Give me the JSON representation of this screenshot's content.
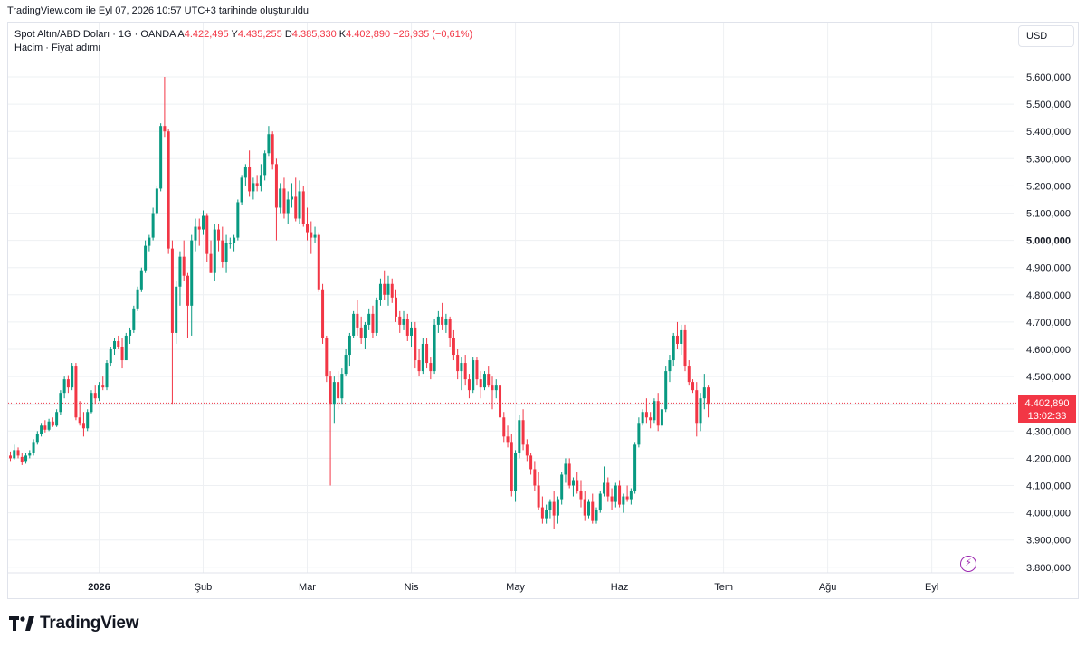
{
  "header": {
    "snapshot_text": "TradingView.com ile Eyl 07, 2026 10:57 UTC+3 tarihinde oluşturuldu"
  },
  "legend": {
    "symbol": "Spot Altın/ABD Doları · 1G · OANDA",
    "open_label": "A",
    "open": "4.422,495",
    "high_label": "Y",
    "high": "4.435,255",
    "low_label": "D",
    "low": "4.385,330",
    "close_label": "K",
    "close": "4.402,890",
    "change": "−26,935 (−0,61%)",
    "indicators": "Hacim · Fiyat adımı"
  },
  "currency_button": "USD",
  "last_price": {
    "price": "4.402,890",
    "countdown": "13:02:33"
  },
  "brand": {
    "logo_text": "TradingView"
  },
  "colors": {
    "up": "#089981",
    "down": "#f23645",
    "grid": "#eef0f3",
    "accent": "#9c27b0"
  },
  "icons": {
    "flash": "lightning-icon",
    "logo": "tradingview-logo-icon"
  },
  "chart_data": {
    "type": "candlestick",
    "y_ticks": [
      "5.600,000",
      "5.500,000",
      "5.400,000",
      "5.300,000",
      "5.200,000",
      "5.100,000",
      "5.000,000",
      "4.900,000",
      "4.800,000",
      "4.700,000",
      "4.600,000",
      "4.500,000",
      "4.300,000",
      "4.200,000",
      "4.100,000",
      "4.000,000",
      "3.900,000",
      "3.800,000"
    ],
    "y_tick_values": [
      5600,
      5500,
      5400,
      5300,
      5200,
      5100,
      5000,
      4900,
      4800,
      4700,
      4600,
      4500,
      4300,
      4200,
      4100,
      4000,
      3900,
      3800
    ],
    "ylim": [
      3780,
      5660
    ],
    "x_ticks": [
      "2026",
      "Şub",
      "Mar",
      "Nis",
      "May",
      "Haz",
      "Tem",
      "Ağu",
      "Eyl"
    ],
    "x_tick_index": [
      23,
      50,
      77,
      104,
      131,
      158,
      185,
      212,
      239
    ],
    "last_value": 4402.89,
    "grid": true,
    "ohlc": [
      [
        4210,
        4225,
        4190,
        4200
      ],
      [
        4200,
        4250,
        4195,
        4230
      ],
      [
        4230,
        4240,
        4200,
        4210
      ],
      [
        4205,
        4220,
        4175,
        4185
      ],
      [
        4190,
        4220,
        4180,
        4210
      ],
      [
        4210,
        4230,
        4200,
        4220
      ],
      [
        4220,
        4270,
        4210,
        4260
      ],
      [
        4260,
        4300,
        4250,
        4290
      ],
      [
        4290,
        4330,
        4280,
        4320
      ],
      [
        4320,
        4340,
        4295,
        4305
      ],
      [
        4305,
        4345,
        4300,
        4335
      ],
      [
        4335,
        4350,
        4315,
        4320
      ],
      [
        4320,
        4380,
        4315,
        4370
      ],
      [
        4370,
        4450,
        4360,
        4440
      ],
      [
        4440,
        4500,
        4420,
        4490
      ],
      [
        4490,
        4505,
        4440,
        4460
      ],
      [
        4460,
        4550,
        4450,
        4540
      ],
      [
        4540,
        4550,
        4340,
        4350
      ],
      [
        4350,
        4410,
        4320,
        4330
      ],
      [
        4330,
        4370,
        4280,
        4310
      ],
      [
        4310,
        4380,
        4300,
        4370
      ],
      [
        4370,
        4450,
        4365,
        4440
      ],
      [
        4440,
        4470,
        4400,
        4420
      ],
      [
        4420,
        4480,
        4410,
        4470
      ],
      [
        4470,
        4500,
        4450,
        4460
      ],
      [
        4460,
        4560,
        4450,
        4550
      ],
      [
        4550,
        4610,
        4540,
        4600
      ],
      [
        4600,
        4640,
        4580,
        4630
      ],
      [
        4630,
        4650,
        4600,
        4610
      ],
      [
        4610,
        4640,
        4530,
        4560
      ],
      [
        4560,
        4660,
        4560,
        4650
      ],
      [
        4650,
        4680,
        4620,
        4670
      ],
      [
        4670,
        4760,
        4660,
        4750
      ],
      [
        4750,
        4830,
        4740,
        4820
      ],
      [
        4820,
        4900,
        4810,
        4890
      ],
      [
        4890,
        5000,
        4880,
        4980
      ],
      [
        4980,
        5020,
        4960,
        5010
      ],
      [
        5010,
        5120,
        5000,
        5100
      ],
      [
        5100,
        5200,
        5090,
        5190
      ],
      [
        5190,
        5430,
        5180,
        5420
      ],
      [
        5420,
        5600,
        5380,
        5400
      ],
      [
        5400,
        5410,
        4950,
        4970
      ],
      [
        4970,
        5000,
        4400,
        4660
      ],
      [
        4660,
        4850,
        4620,
        4830
      ],
      [
        4830,
        4960,
        4760,
        4940
      ],
      [
        4940,
        5000,
        4850,
        4870
      ],
      [
        4870,
        4880,
        4640,
        4760
      ],
      [
        4760,
        5020,
        4650,
        5000
      ],
      [
        5000,
        5080,
        4960,
        5050
      ],
      [
        5050,
        5080,
        4980,
        5040
      ],
      [
        5040,
        5110,
        5020,
        5090
      ],
      [
        5090,
        5100,
        4920,
        4950
      ],
      [
        4950,
        5000,
        4880,
        4880
      ],
      [
        4880,
        5060,
        4850,
        5040
      ],
      [
        5040,
        5060,
        4960,
        5000
      ],
      [
        5000,
        5050,
        4900,
        4920
      ],
      [
        4920,
        5020,
        4880,
        4990
      ],
      [
        4990,
        5010,
        4970,
        4990
      ],
      [
        4990,
        5020,
        4960,
        5010
      ],
      [
        5010,
        5150,
        5000,
        5140
      ],
      [
        5140,
        5240,
        5130,
        5230
      ],
      [
        5230,
        5280,
        5200,
        5270
      ],
      [
        5270,
        5330,
        5160,
        5180
      ],
      [
        5180,
        5230,
        5150,
        5210
      ],
      [
        5210,
        5240,
        5180,
        5200
      ],
      [
        5200,
        5280,
        5180,
        5240
      ],
      [
        5240,
        5330,
        5220,
        5320
      ],
      [
        5320,
        5420,
        5310,
        5390
      ],
      [
        5390,
        5400,
        5260,
        5280
      ],
      [
        5280,
        5300,
        5000,
        5120
      ],
      [
        5120,
        5210,
        5100,
        5190
      ],
      [
        5190,
        5230,
        5080,
        5100
      ],
      [
        5100,
        5180,
        5060,
        5150
      ],
      [
        5150,
        5210,
        5120,
        5160
      ],
      [
        5160,
        5230,
        5070,
        5080
      ],
      [
        5080,
        5220,
        5060,
        5180
      ],
      [
        5180,
        5200,
        5050,
        5060
      ],
      [
        5060,
        5120,
        5000,
        5030
      ],
      [
        5030,
        5070,
        4950,
        5010
      ],
      [
        5010,
        5050,
        4990,
        5020
      ],
      [
        5020,
        5030,
        4810,
        4820
      ],
      [
        4820,
        4840,
        4620,
        4640
      ],
      [
        4640,
        4650,
        4480,
        4500
      ],
      [
        4500,
        4520,
        4100,
        4400
      ],
      [
        4400,
        4500,
        4330,
        4480
      ],
      [
        4480,
        4520,
        4380,
        4420
      ],
      [
        4420,
        4530,
        4400,
        4510
      ],
      [
        4510,
        4600,
        4500,
        4580
      ],
      [
        4580,
        4660,
        4540,
        4650
      ],
      [
        4650,
        4740,
        4640,
        4730
      ],
      [
        4730,
        4780,
        4650,
        4680
      ],
      [
        4680,
        4720,
        4620,
        4640
      ],
      [
        4640,
        4700,
        4600,
        4690
      ],
      [
        4690,
        4750,
        4670,
        4730
      ],
      [
        4730,
        4760,
        4640,
        4660
      ],
      [
        4660,
        4790,
        4650,
        4780
      ],
      [
        4780,
        4860,
        4760,
        4840
      ],
      [
        4840,
        4890,
        4780,
        4800
      ],
      [
        4800,
        4870,
        4760,
        4840
      ],
      [
        4840,
        4860,
        4770,
        4790
      ],
      [
        4790,
        4820,
        4700,
        4720
      ],
      [
        4720,
        4740,
        4660,
        4690
      ],
      [
        4690,
        4740,
        4670,
        4710
      ],
      [
        4710,
        4730,
        4630,
        4650
      ],
      [
        4650,
        4700,
        4610,
        4680
      ],
      [
        4680,
        4700,
        4530,
        4560
      ],
      [
        4560,
        4600,
        4500,
        4520
      ],
      [
        4520,
        4640,
        4510,
        4620
      ],
      [
        4620,
        4640,
        4530,
        4550
      ],
      [
        4550,
        4570,
        4490,
        4520
      ],
      [
        4520,
        4710,
        4510,
        4690
      ],
      [
        4690,
        4740,
        4660,
        4720
      ],
      [
        4720,
        4770,
        4670,
        4690
      ],
      [
        4690,
        4730,
        4660,
        4710
      ],
      [
        4710,
        4720,
        4610,
        4640
      ],
      [
        4640,
        4670,
        4560,
        4580
      ],
      [
        4580,
        4600,
        4490,
        4520
      ],
      [
        4520,
        4570,
        4450,
        4550
      ],
      [
        4550,
        4580,
        4470,
        4490
      ],
      [
        4490,
        4510,
        4420,
        4450
      ],
      [
        4450,
        4570,
        4440,
        4560
      ],
      [
        4560,
        4570,
        4470,
        4490
      ],
      [
        4490,
        4520,
        4420,
        4460
      ],
      [
        4460,
        4520,
        4450,
        4510
      ],
      [
        4510,
        4540,
        4460,
        4470
      ],
      [
        4470,
        4500,
        4380,
        4450
      ],
      [
        4450,
        4490,
        4420,
        4470
      ],
      [
        4470,
        4480,
        4340,
        4350
      ],
      [
        4350,
        4370,
        4260,
        4280
      ],
      [
        4280,
        4320,
        4240,
        4260
      ],
      [
        4260,
        4290,
        4060,
        4080
      ],
      [
        4080,
        4230,
        4040,
        4220
      ],
      [
        4220,
        4360,
        4200,
        4340
      ],
      [
        4340,
        4380,
        4230,
        4250
      ],
      [
        4250,
        4270,
        4190,
        4210
      ],
      [
        4210,
        4220,
        4140,
        4160
      ],
      [
        4160,
        4190,
        4080,
        4100
      ],
      [
        4100,
        4150,
        4010,
        4020
      ],
      [
        4020,
        4060,
        3960,
        3980
      ],
      [
        3980,
        4030,
        3960,
        4010
      ],
      [
        4010,
        4050,
        3980,
        4040
      ],
      [
        4040,
        4080,
        3940,
        3990
      ],
      [
        3990,
        4060,
        3960,
        4050
      ],
      [
        4050,
        4150,
        4030,
        4140
      ],
      [
        4140,
        4200,
        4110,
        4180
      ],
      [
        4180,
        4200,
        4090,
        4100
      ],
      [
        4100,
        4130,
        4060,
        4120
      ],
      [
        4120,
        4150,
        4070,
        4080
      ],
      [
        4080,
        4120,
        4020,
        4050
      ],
      [
        4050,
        4080,
        3970,
        3990
      ],
      [
        3990,
        4050,
        3980,
        4040
      ],
      [
        4040,
        4070,
        3960,
        3970
      ],
      [
        3970,
        4020,
        3960,
        4010
      ],
      [
        4010,
        4080,
        4000,
        4070
      ],
      [
        4070,
        4170,
        4060,
        4110
      ],
      [
        4110,
        4130,
        4040,
        4060
      ],
      [
        4060,
        4090,
        4010,
        4040
      ],
      [
        4040,
        4110,
        4020,
        4100
      ],
      [
        4100,
        4120,
        4020,
        4030
      ],
      [
        4030,
        4070,
        4000,
        4060
      ],
      [
        4060,
        4100,
        4040,
        4050
      ],
      [
        4050,
        4090,
        4030,
        4080
      ],
      [
        4080,
        4260,
        4070,
        4250
      ],
      [
        4250,
        4350,
        4240,
        4330
      ],
      [
        4330,
        4380,
        4320,
        4370
      ],
      [
        4370,
        4420,
        4330,
        4350
      ],
      [
        4350,
        4370,
        4310,
        4340
      ],
      [
        4340,
        4420,
        4330,
        4410
      ],
      [
        4410,
        4440,
        4300,
        4320
      ],
      [
        4320,
        4400,
        4310,
        4380
      ],
      [
        4380,
        4540,
        4370,
        4520
      ],
      [
        4520,
        4580,
        4480,
        4560
      ],
      [
        4560,
        4660,
        4540,
        4650
      ],
      [
        4650,
        4700,
        4600,
        4620
      ],
      [
        4620,
        4690,
        4580,
        4670
      ],
      [
        4670,
        4690,
        4520,
        4540
      ],
      [
        4540,
        4560,
        4470,
        4480
      ],
      [
        4480,
        4490,
        4440,
        4450
      ],
      [
        4450,
        4480,
        4280,
        4330
      ],
      [
        4330,
        4440,
        4300,
        4420
      ],
      [
        4420,
        4510,
        4380,
        4460
      ],
      [
        4460,
        4470,
        4350,
        4400
      ]
    ]
  }
}
